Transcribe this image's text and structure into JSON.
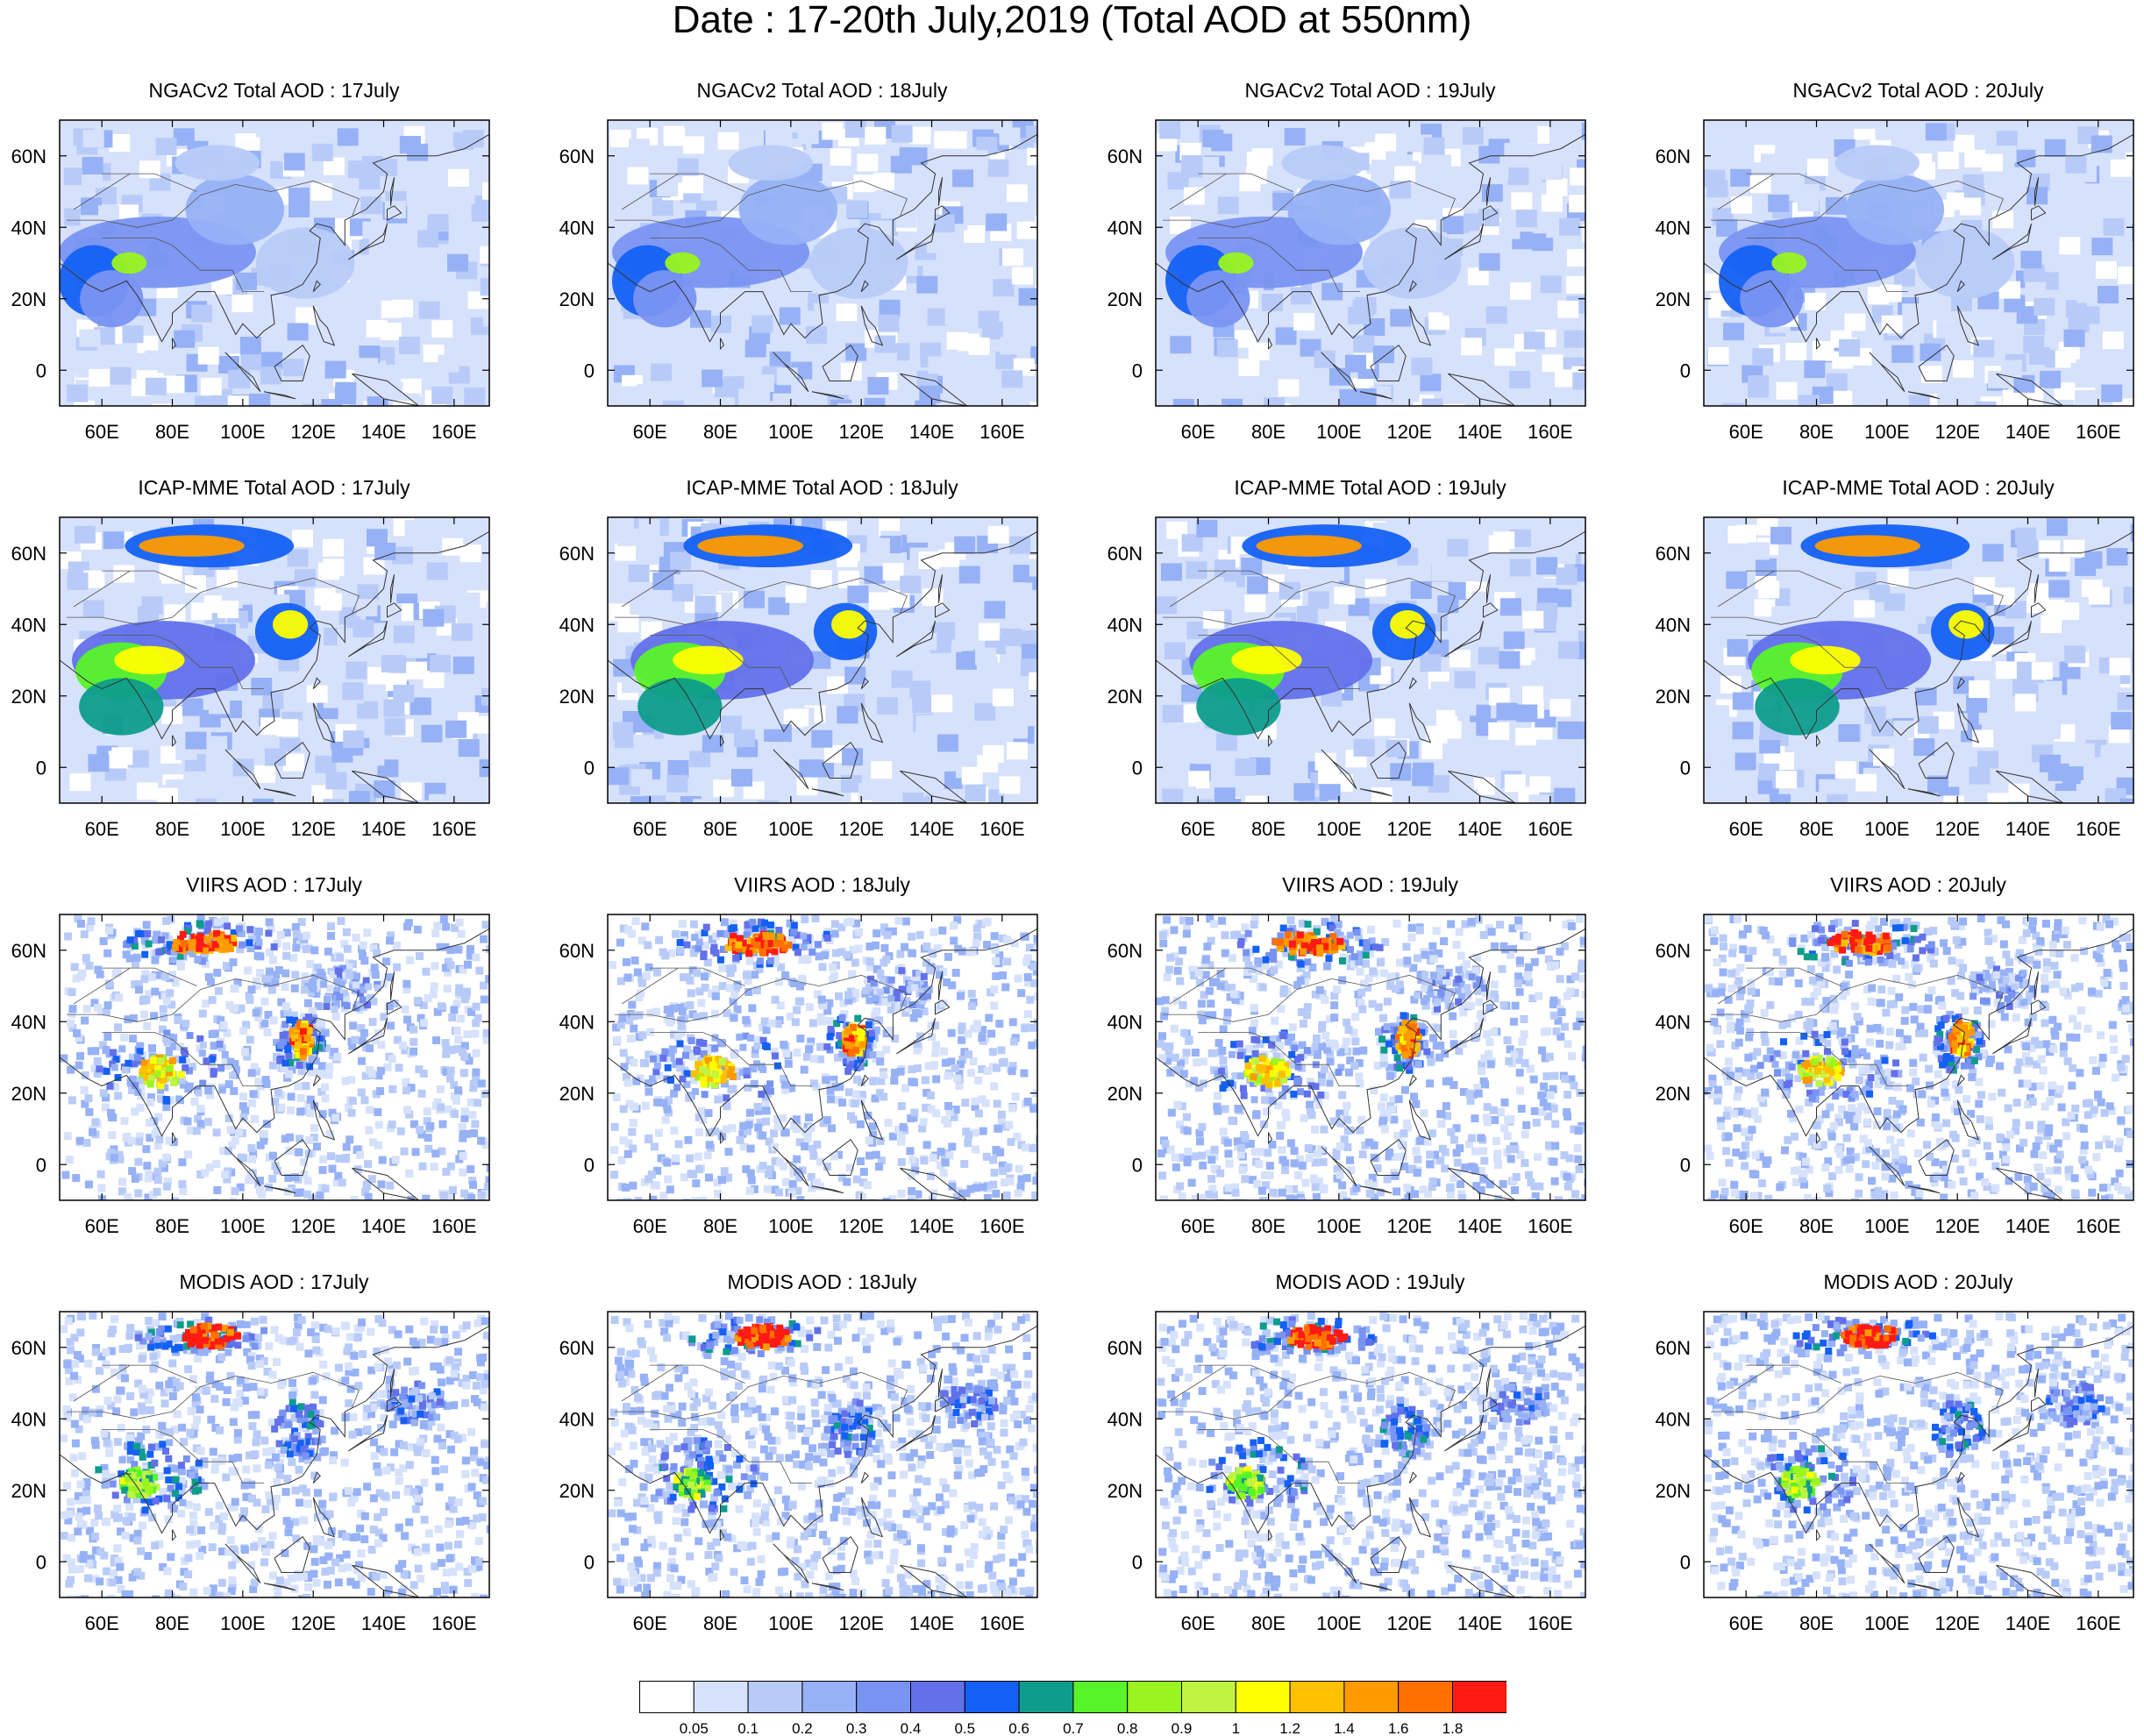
{
  "title": "Date : 17-20th July,2019 (Total AOD at 550nm)",
  "rows": [
    {
      "source": "NGACv2",
      "panels": [
        {
          "title": "NGACv2 Total AOD : 17July"
        },
        {
          "title": "NGACv2 Total AOD : 18July"
        },
        {
          "title": "NGACv2 Total AOD : 19July"
        },
        {
          "title": "NGACv2 Total AOD : 20July"
        }
      ]
    },
    {
      "source": "ICAP-MME",
      "panels": [
        {
          "title": "ICAP-MME Total AOD : 17July"
        },
        {
          "title": "ICAP-MME Total AOD : 18July"
        },
        {
          "title": "ICAP-MME Total AOD : 19July"
        },
        {
          "title": "ICAP-MME Total AOD : 20July"
        }
      ]
    },
    {
      "source": "VIIRS",
      "panels": [
        {
          "title": "VIIRS AOD : 17July"
        },
        {
          "title": "VIIRS AOD : 18July"
        },
        {
          "title": "VIIRS AOD : 19July"
        },
        {
          "title": "VIIRS AOD : 20July"
        }
      ]
    },
    {
      "source": "MODIS",
      "panels": [
        {
          "title": "MODIS AOD : 17July"
        },
        {
          "title": "MODIS AOD : 18July"
        },
        {
          "title": "MODIS AOD : 19July"
        },
        {
          "title": "MODIS AOD : 20July"
        }
      ]
    }
  ],
  "axes": {
    "lon_labels": [
      "60E",
      "80E",
      "100E",
      "120E",
      "140E",
      "160E"
    ],
    "lon_values": [
      60,
      80,
      100,
      120,
      140,
      160
    ],
    "lat_labels": [
      "60N",
      "40N",
      "20N",
      "0"
    ],
    "lat_values": [
      60,
      40,
      20,
      0
    ],
    "lon_range": [
      48,
      170
    ],
    "lat_range": [
      -10,
      70
    ]
  },
  "colorbar": {
    "labels": [
      "0.05",
      "0.1",
      "0.2",
      "0.3",
      "0.4",
      "0.5",
      "0.6",
      "0.7",
      "0.8",
      "0.9",
      "1",
      "1.2",
      "1.4",
      "1.6",
      "1.8"
    ],
    "colors": [
      "#ffffff",
      "#d6e1fb",
      "#b8cbf8",
      "#96b1f6",
      "#7993f2",
      "#6271ea",
      "#1460f4",
      "#0e9c8c",
      "#58f429",
      "#9af41f",
      "#bff444",
      "#ffff00",
      "#ffc000",
      "#ff9a00",
      "#ff7000",
      "#ff1a14"
    ]
  }
}
